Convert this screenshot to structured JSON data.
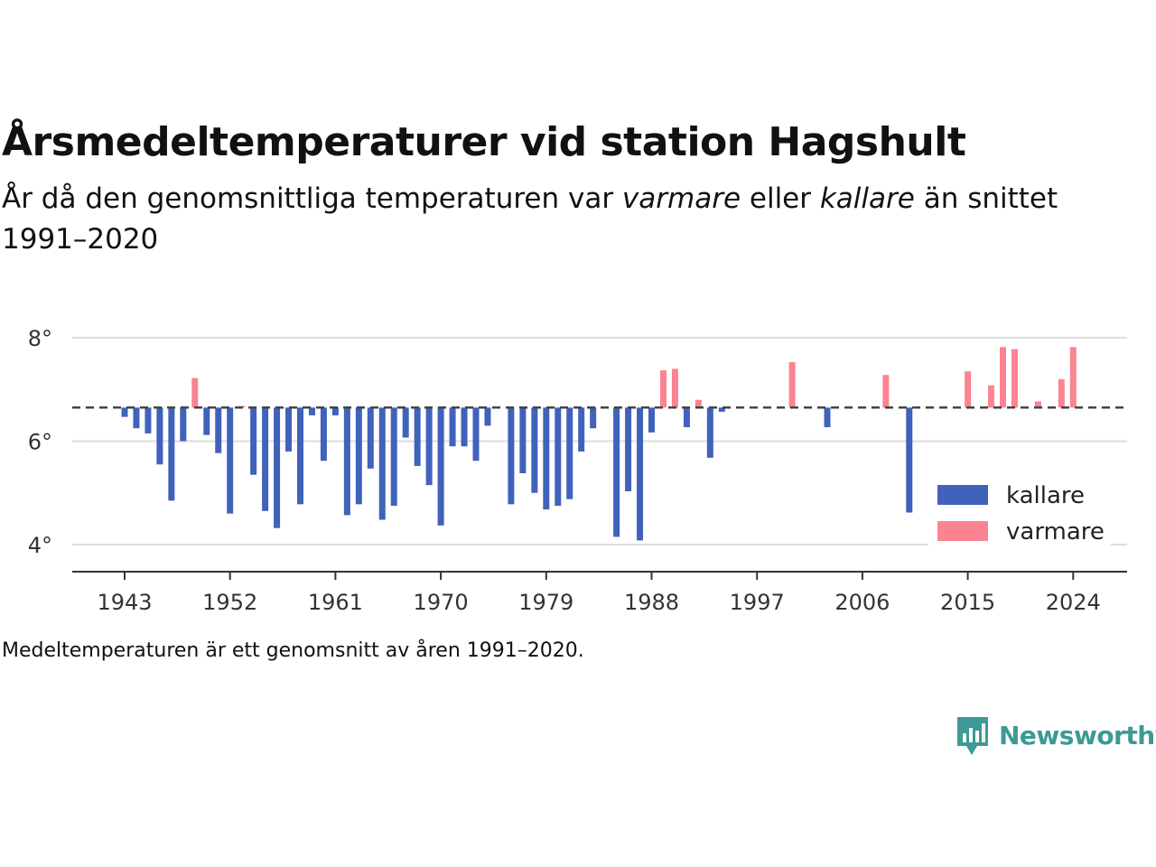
{
  "header": {
    "title": "Årsmedeltemperaturer vid station Hagshult",
    "subtitle_prefix": "År då den genomsnittliga temperaturen var ",
    "subtitle_warm": "varmare",
    "subtitle_mid": " eller ",
    "subtitle_cold": "kallare",
    "subtitle_suffix": " än snittet 1991–2020"
  },
  "footer": {
    "note": "Medeltemperaturen är ett genomsnitt av åren 1991–2020.",
    "brand": "Newsworthy"
  },
  "colors": {
    "kallare": "#4062bb",
    "varmare": "#fb8392",
    "reference_line": "#444444",
    "grid": "#dddddd",
    "brand": "#3d9a94"
  },
  "chart_data": {
    "type": "bar",
    "baseline": 6.65,
    "ylim": [
      3.5,
      8.25
    ],
    "yticks": [
      4,
      6,
      8
    ],
    "ytick_labels": [
      "4°",
      "6°",
      "8°"
    ],
    "xticks": [
      1943,
      1952,
      1961,
      1970,
      1979,
      1988,
      1997,
      2006,
      2015,
      2024
    ],
    "xlim": [
      1938.5,
      2028.5
    ],
    "legend": {
      "position": "bottom-right",
      "entries": [
        {
          "key": "kallare",
          "label": "kallare"
        },
        {
          "key": "varmare",
          "label": "varmare"
        }
      ]
    },
    "grid": true,
    "x": [
      1943,
      1944,
      1945,
      1946,
      1947,
      1948,
      1949,
      1950,
      1951,
      1952,
      1953,
      1954,
      1955,
      1956,
      1957,
      1958,
      1959,
      1960,
      1961,
      1962,
      1963,
      1964,
      1965,
      1966,
      1967,
      1968,
      1969,
      1970,
      1971,
      1972,
      1973,
      1974,
      1976,
      1977,
      1978,
      1979,
      1980,
      1981,
      1982,
      1983,
      1985,
      1986,
      1987,
      1988,
      1989,
      1990,
      1991,
      1992,
      1993,
      1994,
      2000,
      2003,
      2008,
      2010,
      2015,
      2017,
      2018,
      2019,
      2021,
      2023,
      2024
    ],
    "values": [
      6.47,
      6.25,
      6.15,
      5.55,
      4.85,
      6.0,
      7.22,
      6.12,
      5.77,
      4.6,
      6.68,
      5.35,
      4.65,
      4.32,
      5.8,
      4.78,
      6.5,
      5.62,
      6.5,
      4.57,
      4.78,
      5.47,
      4.48,
      4.75,
      6.07,
      5.52,
      5.15,
      4.37,
      5.9,
      5.9,
      5.62,
      6.3,
      4.78,
      5.38,
      5.0,
      4.68,
      4.75,
      4.88,
      5.8,
      6.25,
      4.15,
      5.03,
      4.08,
      6.17,
      7.37,
      7.4,
      6.27,
      6.8,
      5.68,
      6.57,
      7.53,
      6.27,
      7.28,
      4.62,
      7.35,
      7.08,
      7.82,
      7.78,
      6.77,
      7.2,
      7.82
    ]
  }
}
